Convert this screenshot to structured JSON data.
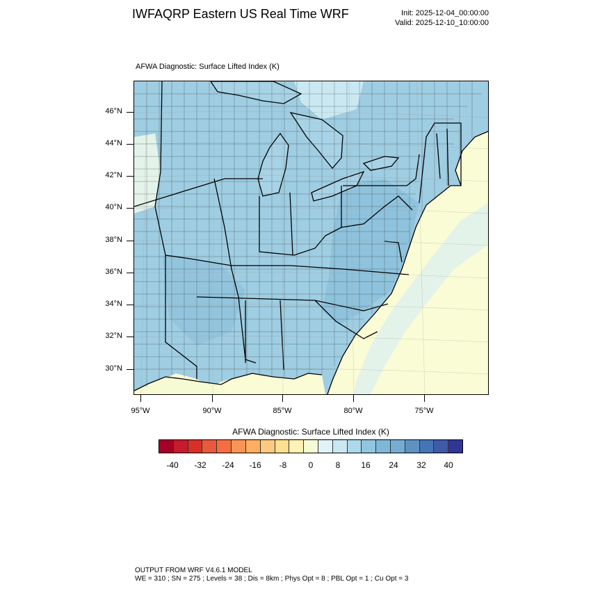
{
  "header": {
    "title": "IWFAQRP Eastern US Real Time WRF",
    "init": "Init: 2025-12-04_00:00:00",
    "valid": "Valid: 2025-12-10_10:00:00"
  },
  "map": {
    "field_title": "AFWA Diagnostic: Surface Lifted Index   (K)",
    "lat_labels": [
      "46°N",
      "44°N",
      "42°N",
      "40°N",
      "38°N",
      "36°N",
      "34°N",
      "32°N",
      "30°N"
    ],
    "lon_labels": [
      "95°W",
      "90°W",
      "85°W",
      "80°W",
      "75°W"
    ],
    "colors": {
      "land_base": "#9fcde2",
      "ocean": "#fafcd6",
      "gulf": "#f7fbd3",
      "lakes": "#a8d3e6",
      "boundary": "#000000"
    }
  },
  "colorbar": {
    "title": "AFWA Diagnostic: Surface Lifted Index  (K)",
    "labels": [
      "-40",
      "-32",
      "-24",
      "-16",
      "-8",
      "0",
      "8",
      "16",
      "24",
      "32",
      "40"
    ],
    "colors": [
      "#a50026",
      "#c51b2a",
      "#d73027",
      "#e85a3b",
      "#f46d43",
      "#f89556",
      "#fdae61",
      "#fec981",
      "#fee090",
      "#fef2b6",
      "#f7fbd3",
      "#e0f3f8",
      "#c9e8f1",
      "#abd9e9",
      "#92c5de",
      "#7fb7d9",
      "#74add1",
      "#5f92c3",
      "#4575b4",
      "#3f5ba8",
      "#313695"
    ]
  },
  "footer": {
    "line1": "OUTPUT FROM WRF V4.6.1 MODEL",
    "line2": "WE = 310 ; SN = 275 ; Levels = 38 ; Dis = 8km ; Phys Opt = 8 ; PBL Opt = 1 ; Cu Opt = 3"
  }
}
